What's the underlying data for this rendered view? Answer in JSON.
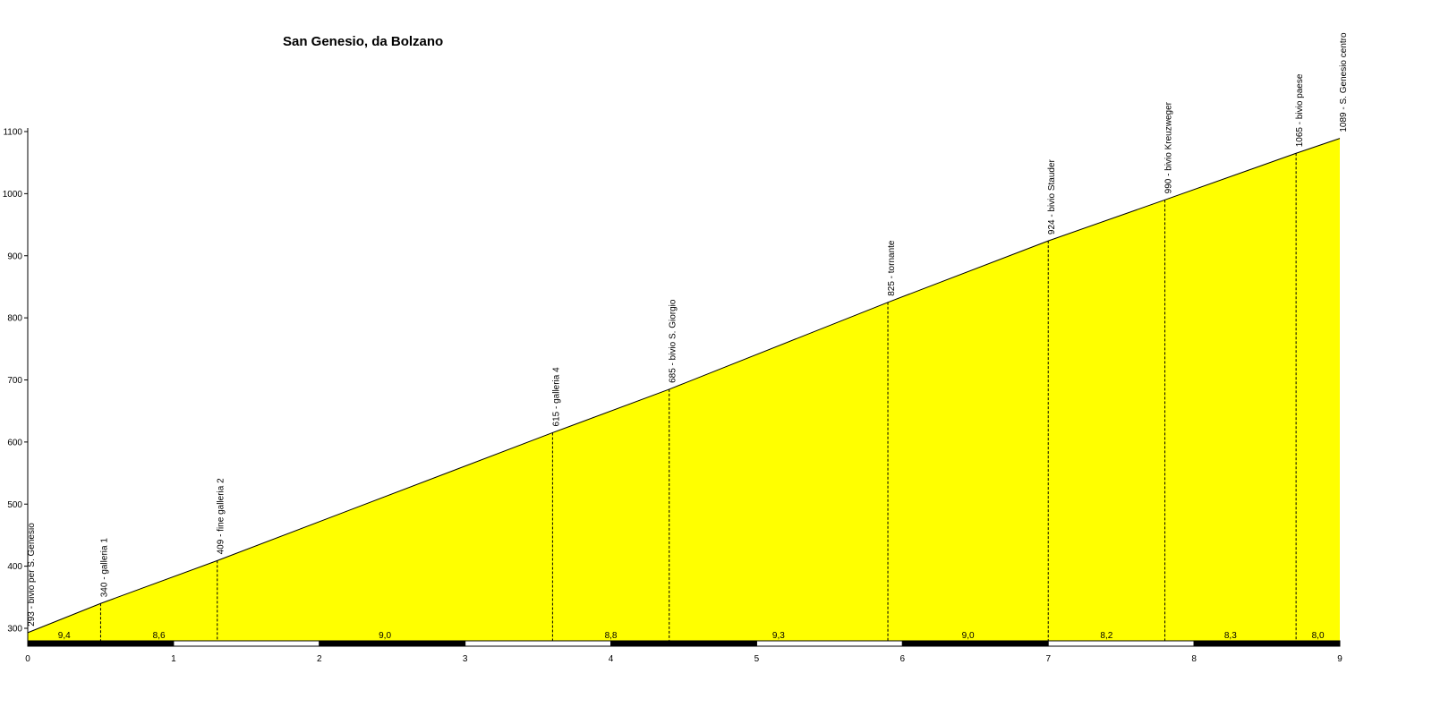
{
  "chart_data": {
    "type": "area",
    "title": "San Genesio, da Bolzano",
    "xlabel": "",
    "ylabel": "",
    "xlim": [
      0,
      9
    ],
    "ylim": [
      280,
      1100
    ],
    "x_ticks": [
      "0",
      "1",
      "2",
      "3",
      "4",
      "5",
      "6",
      "7",
      "8",
      "9"
    ],
    "y_ticks": [
      "300",
      "400",
      "500",
      "600",
      "700",
      "800",
      "900",
      "1000",
      "1100"
    ],
    "fill_color": "#ffff00",
    "line_color": "#000000",
    "grid": false,
    "points": [
      {
        "x": 0,
        "y": 293,
        "label": "293 - bivio per S. Genesio"
      },
      {
        "x": 0.5,
        "y": 340,
        "label": "340 - galleria 1"
      },
      {
        "x": 1.3,
        "y": 409,
        "label": "409 - fine galleria 2"
      },
      {
        "x": 3.6,
        "y": 615,
        "label": "615 - galleria 4"
      },
      {
        "x": 4.4,
        "y": 685,
        "label": "685 - bivio S. Giorgio"
      },
      {
        "x": 5.9,
        "y": 825,
        "label": "825 - tornante"
      },
      {
        "x": 7.0,
        "y": 924,
        "label": "924 - bivio Stauder"
      },
      {
        "x": 7.8,
        "y": 990,
        "label": "990 - bivio Kreuzweger"
      },
      {
        "x": 8.7,
        "y": 1065,
        "label": "1065 - bivio paese"
      },
      {
        "x": 9.0,
        "y": 1089,
        "label": "1089 - S. Genesio centro"
      }
    ],
    "gradients": [
      {
        "x": 0.25,
        "value": "9,4"
      },
      {
        "x": 0.9,
        "value": "8,6"
      },
      {
        "x": 2.45,
        "value": "9,0"
      },
      {
        "x": 4.0,
        "value": "8,8"
      },
      {
        "x": 5.15,
        "value": "9,3"
      },
      {
        "x": 6.45,
        "value": "9,0"
      },
      {
        "x": 7.4,
        "value": "8,2"
      },
      {
        "x": 8.25,
        "value": "8,3"
      },
      {
        "x": 8.85,
        "value": "8,0"
      }
    ]
  }
}
